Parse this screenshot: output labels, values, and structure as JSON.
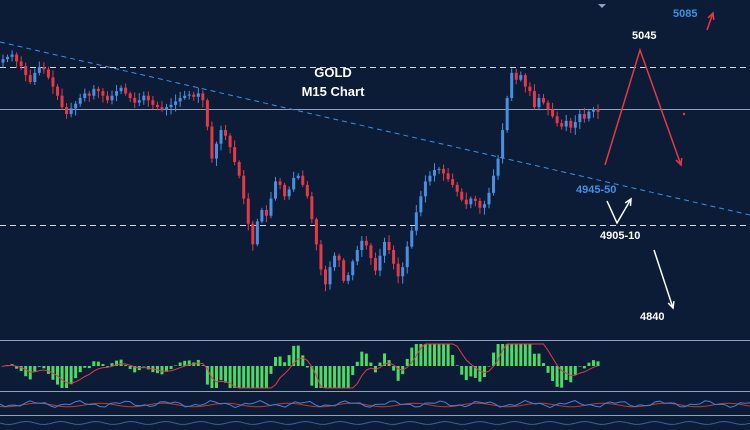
{
  "chart_data": {
    "type": "candlestick",
    "title": "GOLD",
    "subtitle": "M15 Chart",
    "instrument": "GOLD",
    "timeframe": "M15",
    "price_range": [
      4815,
      5095
    ],
    "horizontal_levels": [
      {
        "label": "5045",
        "value": 5045,
        "style": "dashed"
      },
      {
        "label": "",
        "value": 5008,
        "style": "solid"
      },
      {
        "label": "4905-10",
        "value": 4907,
        "style": "dashed"
      }
    ],
    "annotations": [
      {
        "label": "5085",
        "value": 5085,
        "color": "#3d8fe8"
      },
      {
        "label": "5045",
        "value": 5045,
        "color": "#ffffff"
      },
      {
        "label": "4945-50",
        "value": 4947,
        "color": "#3d8fe8"
      },
      {
        "label": "4905-10",
        "value": 4907,
        "color": "#ffffff"
      },
      {
        "label": "4840",
        "value": 4840,
        "color": "#ffffff"
      }
    ],
    "closes": [
      5052,
      5054,
      5056,
      5050,
      5046,
      5038,
      5032,
      5040,
      5045,
      5043,
      5036,
      5028,
      5020,
      5010,
      5004,
      5009,
      5013,
      5018,
      5022,
      5020,
      5026,
      5024,
      5020,
      5016,
      5020,
      5024,
      5027,
      5022,
      5018,
      5014,
      5016,
      5020,
      5016,
      5012,
      5010,
      5008,
      5010,
      5012,
      5015,
      5018,
      5020,
      5021,
      5019,
      5022,
      5016,
      4993,
      4965,
      4978,
      4990,
      4985,
      4975,
      4962,
      4950,
      4930,
      4908,
      4890,
      4910,
      4920,
      4915,
      4930,
      4945,
      4942,
      4932,
      4938,
      4948,
      4950,
      4942,
      4932,
      4912,
      4890,
      4868,
      4855,
      4870,
      4880,
      4876,
      4858,
      4863,
      4875,
      4885,
      4893,
      4889,
      4878,
      4867,
      4880,
      4892,
      4885,
      4873,
      4862,
      4870,
      4888,
      4902,
      4918,
      4932,
      4945,
      4950,
      4955,
      4956,
      4952,
      4947,
      4942,
      4936,
      4929,
      4925,
      4930,
      4928,
      4922,
      4925,
      4935,
      4950,
      4965,
      4990,
      5018,
      5040,
      5034,
      5038,
      5028,
      5024,
      5010,
      5018,
      5014,
      5008,
      5002,
      4996,
      4993,
      4998,
      4992,
      4997,
      5004,
      5000,
      5006,
      5008,
      5006
    ],
    "series_colors": {
      "up": "#4a90e2",
      "down": "#e63946"
    },
    "indicators": [
      {
        "type": "histogram",
        "colors": [
          "#4cd964",
          "#e63946"
        ]
      },
      {
        "type": "oscillator",
        "colors": [
          "#4a7dd6",
          "#c0392b"
        ]
      }
    ]
  }
}
